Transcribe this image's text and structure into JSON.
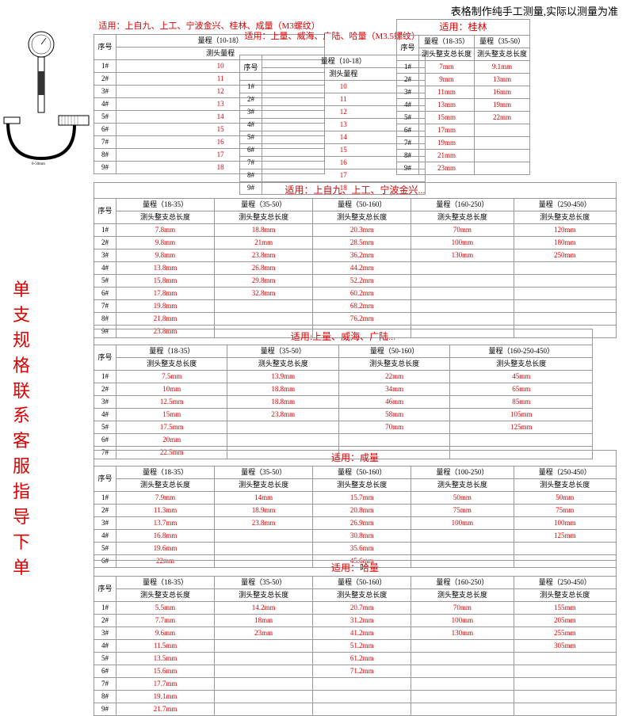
{
  "top_note": "表格制作纯手工测量,实际以测量为准",
  "vertical": "单支规格联系客服指导下单",
  "hdr_a": "适用：上自九、上工、宁波金兴、桂林、成量（M3螺纹）",
  "hdr_b": "适用：上量、威海、广陆、哈量（M3.5螺纹）",
  "hdr_gl": "适用：桂林",
  "col_sn": "序号",
  "col_range_1018": "量程（10-18）",
  "col_anvil": "测头量程",
  "col_len": "测头整支总长度",
  "r1835": "量程（18-35）",
  "r3550": "量程（35-50）",
  "r50160": "量程（50-160）",
  "r160250": "量程（160-250）",
  "r250450": "量程（250-450）",
  "r100250": "量程（100-250）",
  "r160250450": "量程（160-250-450）",
  "sn": [
    "1#",
    "2#",
    "3#",
    "4#",
    "5#",
    "6#",
    "7#",
    "8#",
    "9#"
  ],
  "tab_a": [
    "10",
    "11",
    "12",
    "13",
    "14",
    "15",
    "16",
    "17",
    "18"
  ],
  "gl_a": [
    "7mm",
    "9mm",
    "11mm",
    "13mm",
    "15mm",
    "17mm",
    "19mm",
    "21mm",
    "23mm"
  ],
  "gl_b": [
    "9.1mm",
    "13mm",
    "16mm",
    "19mm",
    "22mm",
    "",
    "",
    "",
    ""
  ],
  "t2_title": "适用：上自九、上工、宁波金兴...",
  "t2": {
    "c1": [
      "7.8mm",
      "9.8mm",
      "9.8mm",
      "13.8mm",
      "15.8mm",
      "17.8mm",
      "19.8mm",
      "21.8mm",
      "23.8mm"
    ],
    "c2": [
      "18.8mm",
      "21mm",
      "23.8mm",
      "26.8mm",
      "29.8mm",
      "32.8mm",
      "",
      "",
      ""
    ],
    "c3": [
      "20.3mm",
      "28.5mm",
      "36.2mm",
      "44.2mm",
      "52.2mm",
      "60.2mm",
      "68.2mm",
      "76.2mm",
      ""
    ],
    "c4": [
      "70mm",
      "100mm",
      "130mm",
      "",
      "",
      "",
      "",
      "",
      ""
    ],
    "c5": [
      "120mm",
      "180mm",
      "250mm",
      "",
      "",
      "",
      "",
      "",
      ""
    ]
  },
  "t3_title": "适用:上量、威海、广陆...",
  "t3": {
    "c1": [
      "7.5mm",
      "10mm",
      "12.5mm",
      "15mm",
      "17.5mm",
      "20mm",
      "22.5mm"
    ],
    "c2": [
      "13.9mm",
      "18.8mm",
      "18.8mm",
      "23.8mm",
      "",
      "",
      ""
    ],
    "c3": [
      "22mm",
      "34mm",
      "46mm",
      "58mm",
      "70mm",
      "",
      ""
    ],
    "c4": [
      "45mm",
      "65mm",
      "85mm",
      "105mm",
      "125mm",
      "",
      ""
    ]
  },
  "t4_title": "适用：成量",
  "t4": {
    "c1": [
      "7.9mm",
      "11.3mm",
      "13.7mm",
      "16.8mm",
      "19.6mm",
      "22mm"
    ],
    "c2": [
      "14mm",
      "18.9mm",
      "23.8mm",
      "",
      "",
      ""
    ],
    "c3": [
      "15.7mm",
      "20.8mm",
      "26.9mm",
      "30.8mm",
      "35.6mm",
      "45.6mm"
    ],
    "c4": [
      "50mm",
      "75mm",
      "100mm",
      "",
      "",
      ""
    ],
    "c5": [
      "50mm",
      "75mm",
      "100mm",
      "125mm",
      "",
      ""
    ]
  },
  "t5_title": "适用：哈量",
  "t5": {
    "c1": [
      "5.5mm",
      "7.7mm",
      "9.6mm",
      "11.5mm",
      "13.5mm",
      "15.6mm",
      "17.7mm",
      "19.1mm",
      "21.7mm"
    ],
    "c2": [
      "14.2mm",
      "18mm",
      "23mm",
      "",
      "",
      "",
      "",
      "",
      ""
    ],
    "c3": [
      "20.7mm",
      "31.2mm",
      "41.2mm",
      "51.2mm",
      "61.2mm",
      "71.2mm",
      "",
      "",
      ""
    ],
    "c4": [
      "70mm",
      "100mm",
      "130mm",
      "",
      "",
      "",
      "",
      "",
      ""
    ],
    "c5": [
      "155mm",
      "205mm",
      "255mm",
      "305mm",
      "",
      "",
      "",
      "",
      ""
    ]
  }
}
